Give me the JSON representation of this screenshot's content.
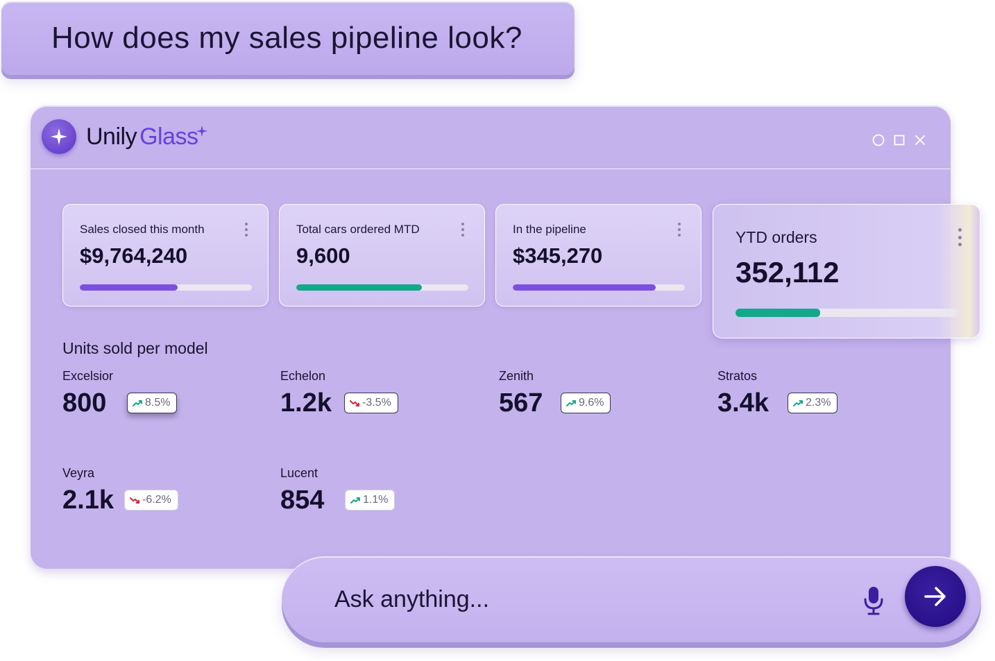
{
  "prompt": {
    "text": "How does my sales pipeline look?"
  },
  "app": {
    "brand_primary": "Unily",
    "brand_secondary": "Glass",
    "brand_color": "#6a3fe0",
    "window_controls": [
      "circle-icon",
      "square-icon",
      "close-icon"
    ]
  },
  "kpis": [
    {
      "label": "Sales closed this month",
      "value": "$9,764,240",
      "progress": 0.57,
      "color": "#7b4fe0"
    },
    {
      "label": "Total cars ordered MTD",
      "value": "9,600",
      "progress": 0.73,
      "color": "#12a88a"
    },
    {
      "label": "In the pipeline",
      "value": "$345,270",
      "progress": 0.83,
      "color": "#7b4fe0"
    },
    {
      "label": "YTD orders",
      "value": "352,112",
      "progress": 0.38,
      "color": "#12a88a"
    }
  ],
  "units": {
    "title": "Units sold per model",
    "models": [
      {
        "name": "Excelsior",
        "value": "800",
        "change": "8.5%",
        "trend": "up"
      },
      {
        "name": "Echelon",
        "value": "1.2k",
        "change": "-3.5%",
        "trend": "down"
      },
      {
        "name": "Zenith",
        "value": "567",
        "change": "9.6%",
        "trend": "up"
      },
      {
        "name": "Stratos",
        "value": "3.4k",
        "change": "2.3%",
        "trend": "up"
      },
      {
        "name": "Veyra",
        "value": "2.1k",
        "change": "-6.2%",
        "trend": "down"
      },
      {
        "name": "Lucent",
        "value": "854",
        "change": "1.1%",
        "trend": "up"
      }
    ]
  },
  "ask": {
    "placeholder": "Ask anything..."
  },
  "colors": {
    "up": "#12a88a",
    "down": "#c4283f"
  }
}
